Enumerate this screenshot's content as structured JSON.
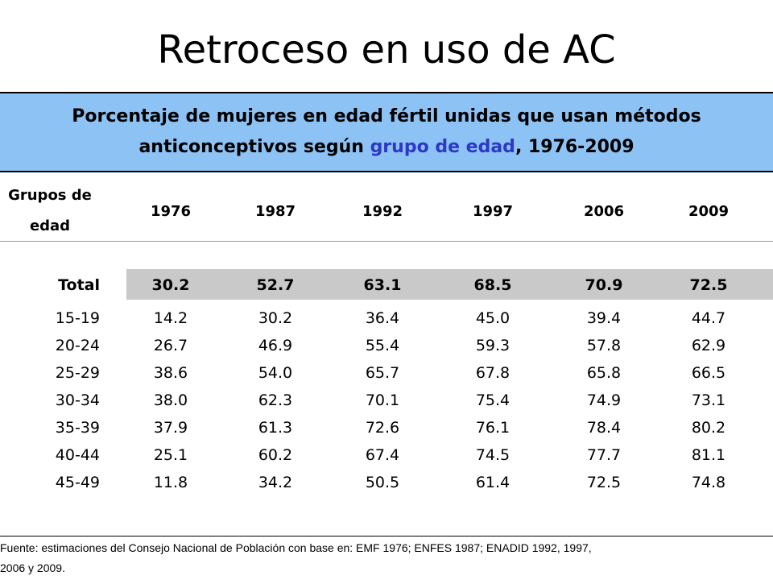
{
  "slide": {
    "title": "Retroceso en uso de AC"
  },
  "caption": {
    "line1": "Porcentaje de mujeres en edad fértil unidas que usan métodos",
    "line2_pre": "anticonceptivos  según ",
    "line2_highlight": "grupo de edad",
    "line2_post": ", 1976-2009",
    "highlight_color": "#2d38c6",
    "band_color": "#8dc2f4"
  },
  "table": {
    "group_header_line1": "Grupos de",
    "group_header_line2": "edad",
    "years": [
      "1976",
      "1987",
      "1992",
      "1997",
      "2006",
      "2009"
    ],
    "total_row": {
      "label": "Total",
      "values": [
        "30.2",
        "52.7",
        "63.1",
        "68.5",
        "70.9",
        "72.5"
      ]
    },
    "rows": [
      {
        "label": "15-19",
        "values": [
          "14.2",
          "30.2",
          "36.4",
          "45.0",
          "39.4",
          "44.7"
        ]
      },
      {
        "label": "20-24",
        "values": [
          "26.7",
          "46.9",
          "55.4",
          "59.3",
          "57.8",
          "62.9"
        ]
      },
      {
        "label": "25-29",
        "values": [
          "38.6",
          "54.0",
          "65.7",
          "67.8",
          "65.8",
          "66.5"
        ]
      },
      {
        "label": "30-34",
        "values": [
          "38.0",
          "62.3",
          "70.1",
          "75.4",
          "74.9",
          "73.1"
        ]
      },
      {
        "label": "35-39",
        "values": [
          "37.9",
          "61.3",
          "72.6",
          "76.1",
          "78.4",
          "80.2"
        ]
      },
      {
        "label": "40-44",
        "values": [
          "25.1",
          "60.2",
          "67.4",
          "74.5",
          "77.7",
          "81.1"
        ]
      },
      {
        "label": "45-49",
        "values": [
          "11.8",
          "34.2",
          "50.5",
          "61.4",
          "72.5",
          "74.8"
        ]
      }
    ]
  },
  "footer": {
    "line1": "Fuente: estimaciones del Consejo Nacional de Población con base en: EMF 1976; ENFES 1987; ENADID 1992, 1997,",
    "line2": "2006 y 2009."
  }
}
